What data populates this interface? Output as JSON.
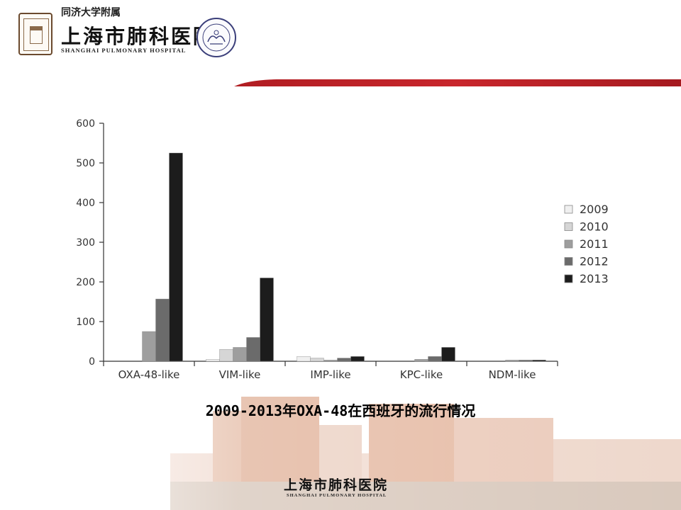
{
  "header": {
    "affiliation": "同济大学附属",
    "hospital_cn": "上海市肺科医院",
    "hospital_en": "SHANGHAI PULMONARY HOSPITAL"
  },
  "caption": "2009-2013年OXA-48在西班牙的流行情况",
  "footer": {
    "hospital_cn": "上海市肺科医院",
    "hospital_en": "SHANGHAI PULMONARY HOSPITAL"
  },
  "colors": {
    "accent_band": "#c8262c",
    "series": [
      "#f0f0f0",
      "#d6d6d6",
      "#9e9e9e",
      "#6b6b6b",
      "#1c1c1c"
    ]
  },
  "chart_data": {
    "type": "bar",
    "title": "",
    "xlabel": "",
    "ylabel": "",
    "categories": [
      "OXA-48-like",
      "VIM-like",
      "IMP-like",
      "KPC-like",
      "NDM-like"
    ],
    "series": [
      {
        "name": "2009",
        "values": [
          0,
          5,
          12,
          0,
          0
        ]
      },
      {
        "name": "2010",
        "values": [
          0,
          30,
          8,
          0,
          0
        ]
      },
      {
        "name": "2011",
        "values": [
          75,
          35,
          3,
          5,
          3
        ]
      },
      {
        "name": "2012",
        "values": [
          157,
          60,
          8,
          12,
          3
        ]
      },
      {
        "name": "2013",
        "values": [
          525,
          210,
          12,
          35,
          3
        ]
      }
    ],
    "ylim": [
      0,
      600
    ],
    "yticks": [
      0,
      100,
      200,
      300,
      400,
      500,
      600
    ],
    "grid": false,
    "legend": "right"
  }
}
